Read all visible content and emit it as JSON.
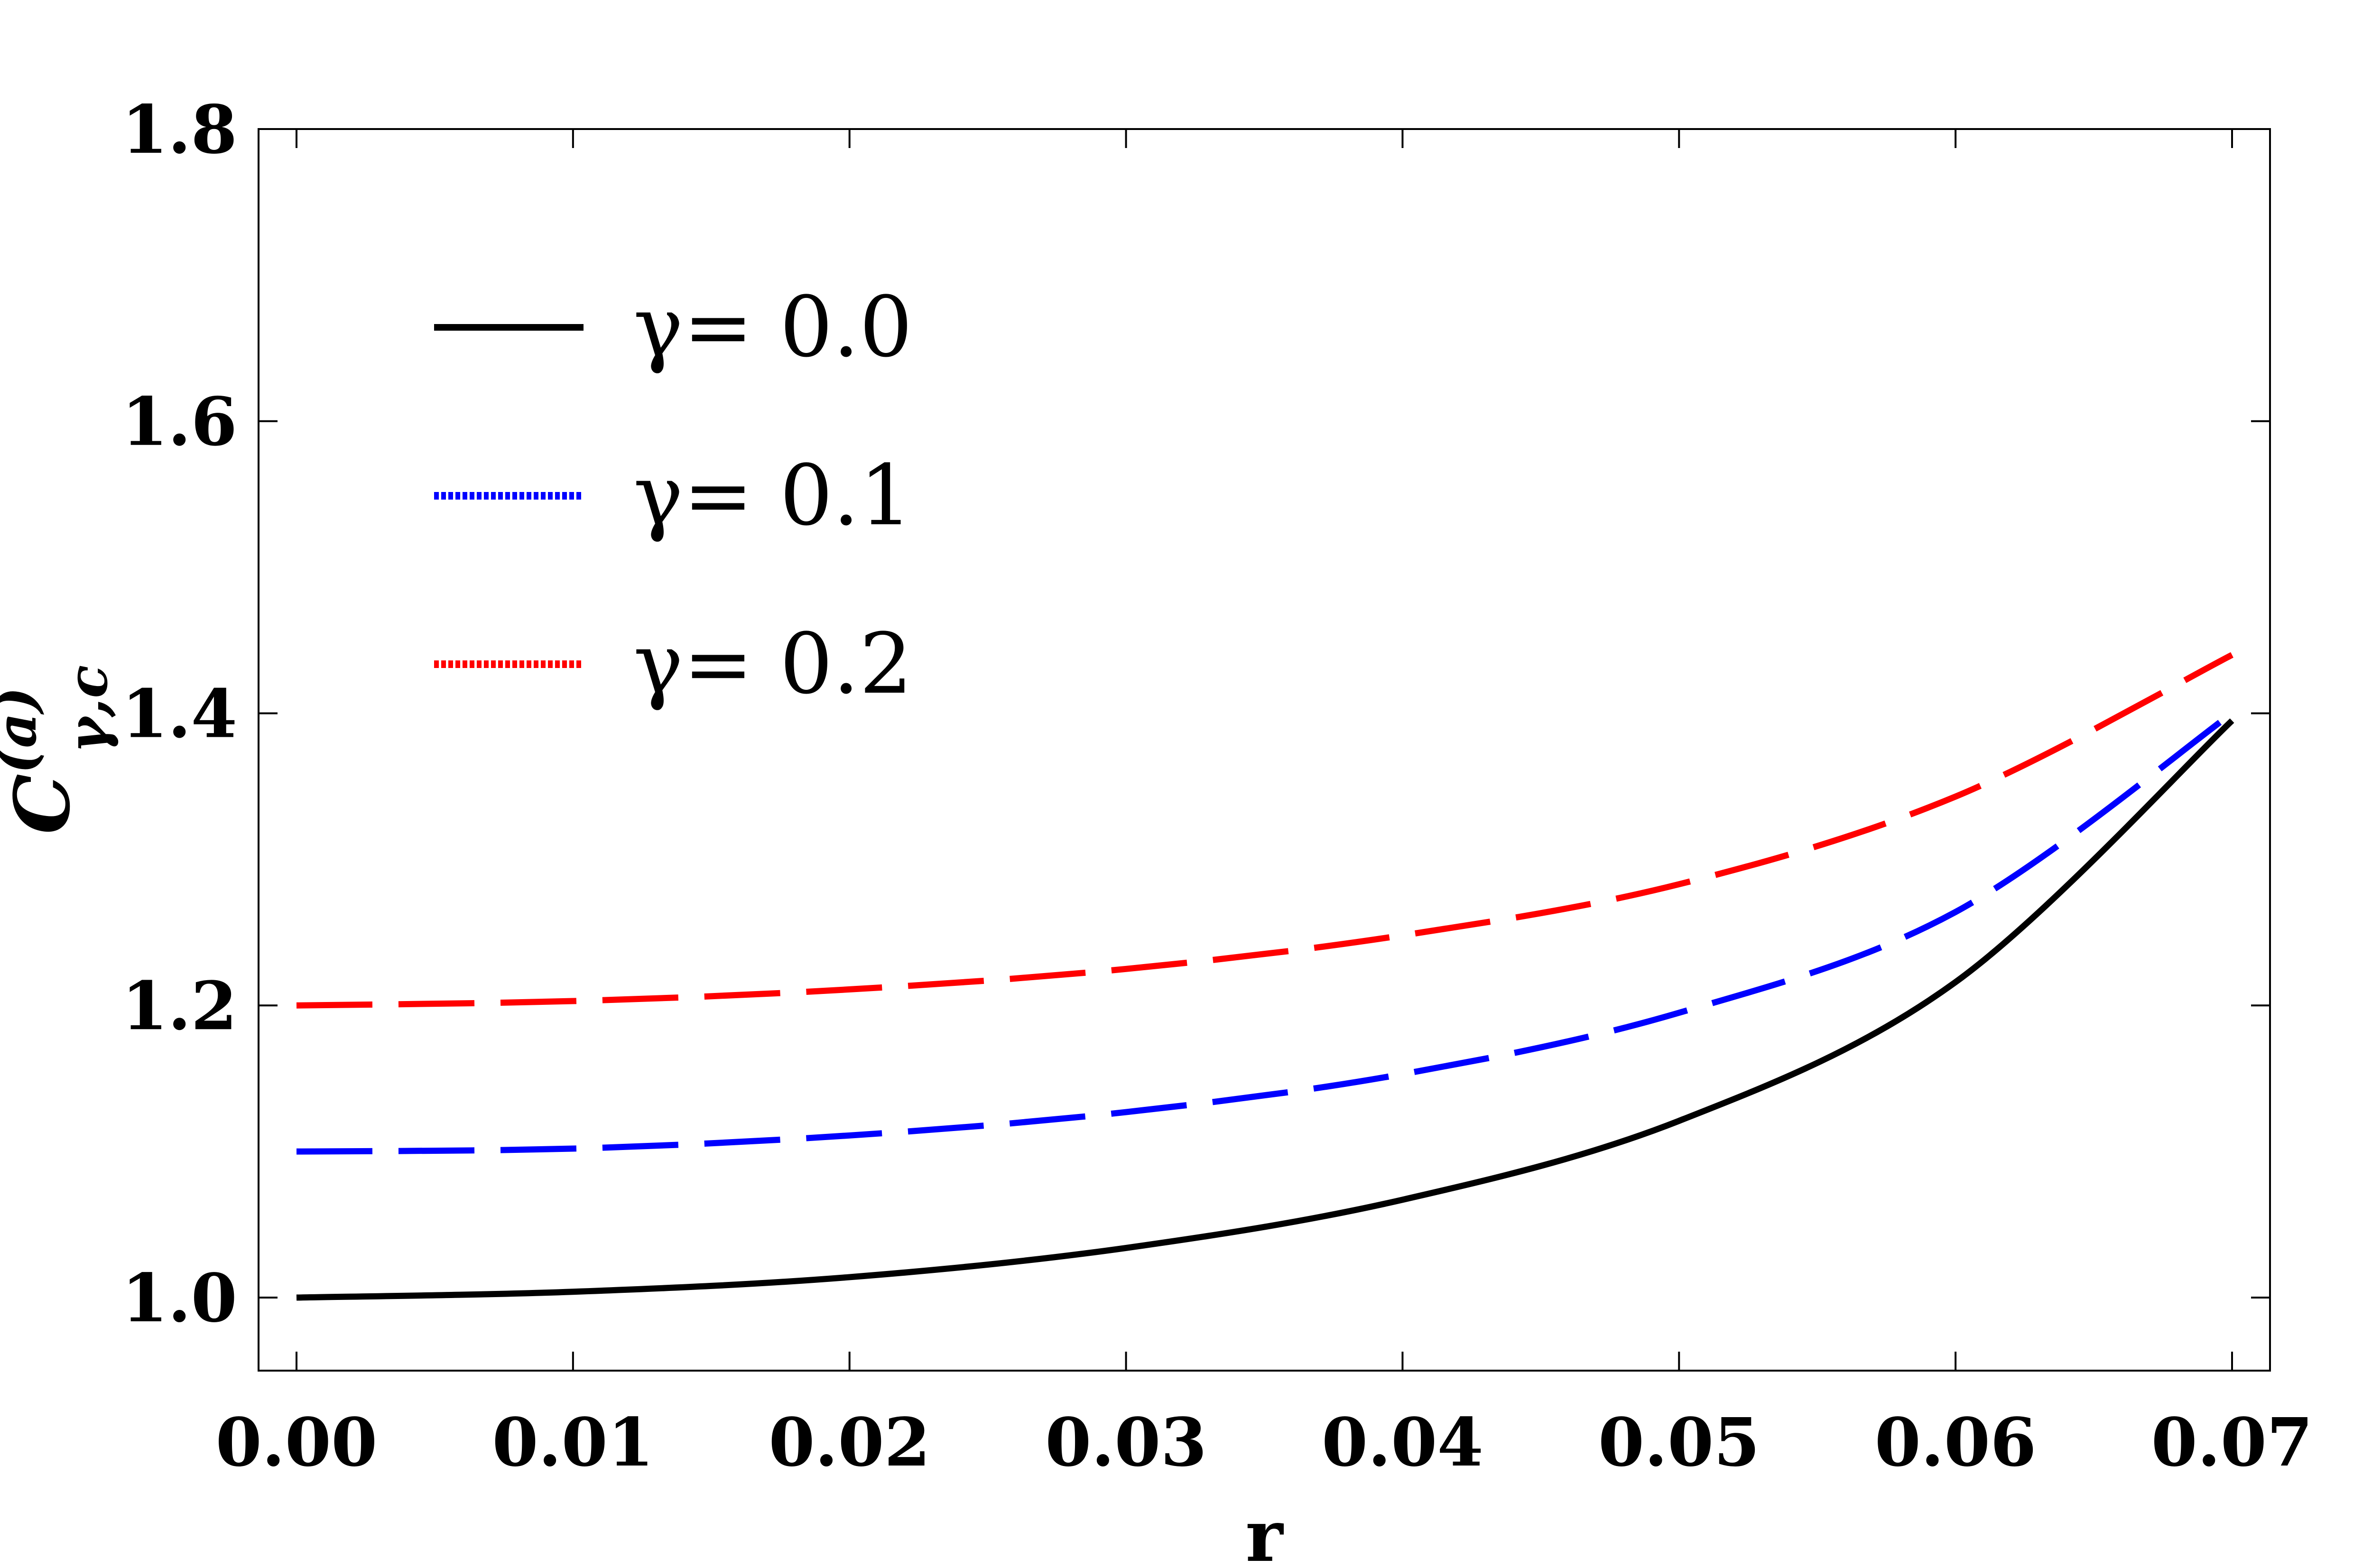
{
  "chart_data": {
    "type": "line",
    "title": "",
    "xlabel": "r",
    "ylabel": {
      "base": "C",
      "superscript": "(a)",
      "subscript": "γ,c"
    },
    "xlim": [
      0.0,
      0.07
    ],
    "ylim": [
      0.95,
      1.8
    ],
    "x_ticks": [
      "0.00",
      "0.01",
      "0.02",
      "0.03",
      "0.04",
      "0.05",
      "0.06",
      "0.07"
    ],
    "y_ticks": [
      "1.0",
      "1.2",
      "1.4",
      "1.6",
      "1.8"
    ],
    "grid": false,
    "legend_position": "top-left",
    "x": [
      0.0,
      0.01,
      0.02,
      0.03,
      0.04,
      0.05,
      0.06,
      0.07
    ],
    "series": [
      {
        "name": "γ= 0.0",
        "color": "#000000",
        "line_style": "solid",
        "values": [
          1.0,
          1.004,
          1.014,
          1.034,
          1.067,
          1.121,
          1.216,
          1.395
        ]
      },
      {
        "name": "γ= 0.1",
        "color": "#0000ff",
        "line_style": "dashed",
        "values": [
          1.1,
          1.102,
          1.111,
          1.127,
          1.153,
          1.195,
          1.264,
          1.4
        ]
      },
      {
        "name": "γ= 0.2",
        "color": "#ff0000",
        "line_style": "dashed",
        "values": [
          1.2,
          1.203,
          1.211,
          1.225,
          1.248,
          1.283,
          1.343,
          1.44
        ]
      }
    ]
  }
}
